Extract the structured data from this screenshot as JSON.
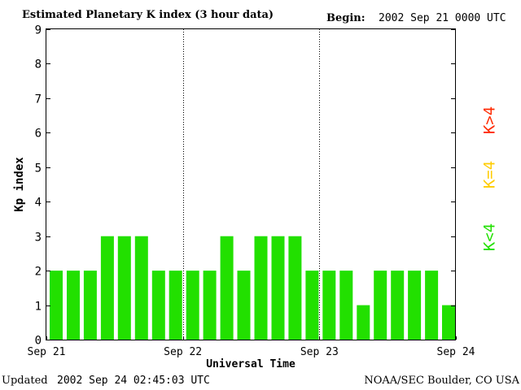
{
  "header": {
    "title": "Estimated Planetary K index (3 hour data)",
    "begin_label": "Begin:",
    "begin_value": "2002 Sep 21 0000 UTC"
  },
  "footer": {
    "updated_label": "Updated",
    "updated_value": "2002 Sep 24 02:45:03 UTC",
    "source": "NOAA/SEC Boulder, CO USA"
  },
  "legend": [
    {
      "label": "K>4",
      "color": "#ff2a00"
    },
    {
      "label": "K=4",
      "color": "#ffcc00"
    },
    {
      "label": "K<4",
      "color": "#22e000"
    }
  ],
  "chart_data": {
    "type": "bar",
    "title": "Estimated Planetary K index (3 hour data)",
    "xlabel": "Universal Time",
    "ylabel": "Kp index",
    "ylim": [
      0,
      9
    ],
    "yticks": [
      0,
      1,
      2,
      3,
      4,
      5,
      6,
      7,
      8,
      9
    ],
    "x_ticks": [
      "Sep 21",
      "Sep 22",
      "Sep 23",
      "Sep 24"
    ],
    "day_dividers": [
      "Sep 22",
      "Sep 23"
    ],
    "interval_hours": 3,
    "bar_color": "#22e000",
    "series": [
      {
        "values": [
          2,
          2,
          2,
          3,
          3,
          3,
          2,
          2,
          2,
          2,
          3,
          2,
          3,
          3,
          3,
          2,
          2,
          2,
          1,
          2,
          2,
          2,
          2,
          1
        ]
      }
    ]
  }
}
